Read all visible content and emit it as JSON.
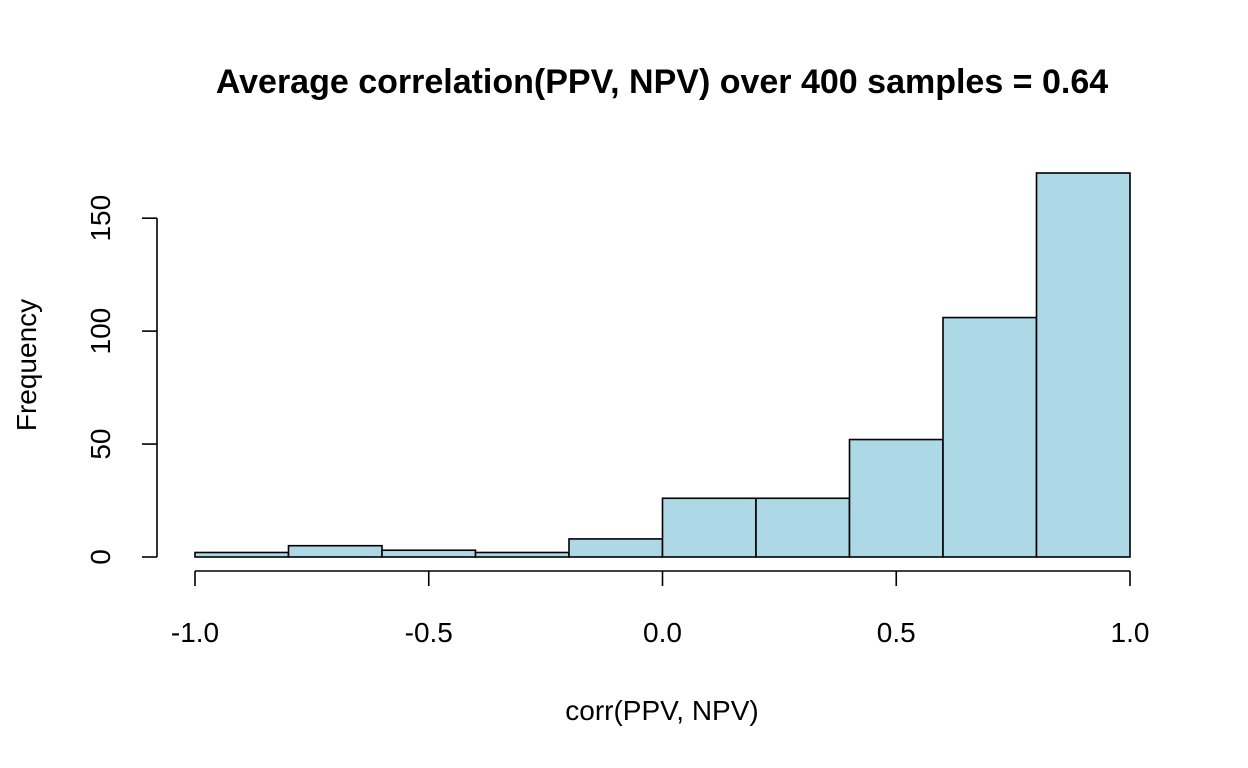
{
  "chart_data": {
    "type": "bar",
    "subtype": "histogram",
    "title": "Average correlation(PPV, NPV) over 400 samples = 0.64",
    "xlabel": "corr(PPV, NPV)",
    "ylabel": "Frequency",
    "bins": [
      {
        "x0": -1.0,
        "x1": -0.8,
        "count": 2
      },
      {
        "x0": -0.8,
        "x1": -0.6,
        "count": 5
      },
      {
        "x0": -0.6,
        "x1": -0.4,
        "count": 3
      },
      {
        "x0": -0.4,
        "x1": -0.2,
        "count": 2
      },
      {
        "x0": -0.2,
        "x1": 0.0,
        "count": 8
      },
      {
        "x0": 0.0,
        "x1": 0.2,
        "count": 26
      },
      {
        "x0": 0.2,
        "x1": 0.4,
        "count": 26
      },
      {
        "x0": 0.4,
        "x1": 0.6,
        "count": 52
      },
      {
        "x0": 0.6,
        "x1": 0.8,
        "count": 106
      },
      {
        "x0": 0.8,
        "x1": 1.0,
        "count": 170
      }
    ],
    "xlim": [
      -1.0,
      1.0
    ],
    "ylim": [
      0,
      170
    ],
    "xticks": [
      -1.0,
      -0.5,
      0.0,
      0.5,
      1.0
    ],
    "xtick_labels": [
      "-1.0",
      "-0.5",
      "0.0",
      "0.5",
      "1.0"
    ],
    "yticks": [
      0,
      50,
      100,
      150
    ],
    "ytick_labels": [
      "0",
      "50",
      "100",
      "150"
    ],
    "bar_color": "#ADD8E6",
    "edge_color": "#000000",
    "grid": false,
    "legend": false
  }
}
